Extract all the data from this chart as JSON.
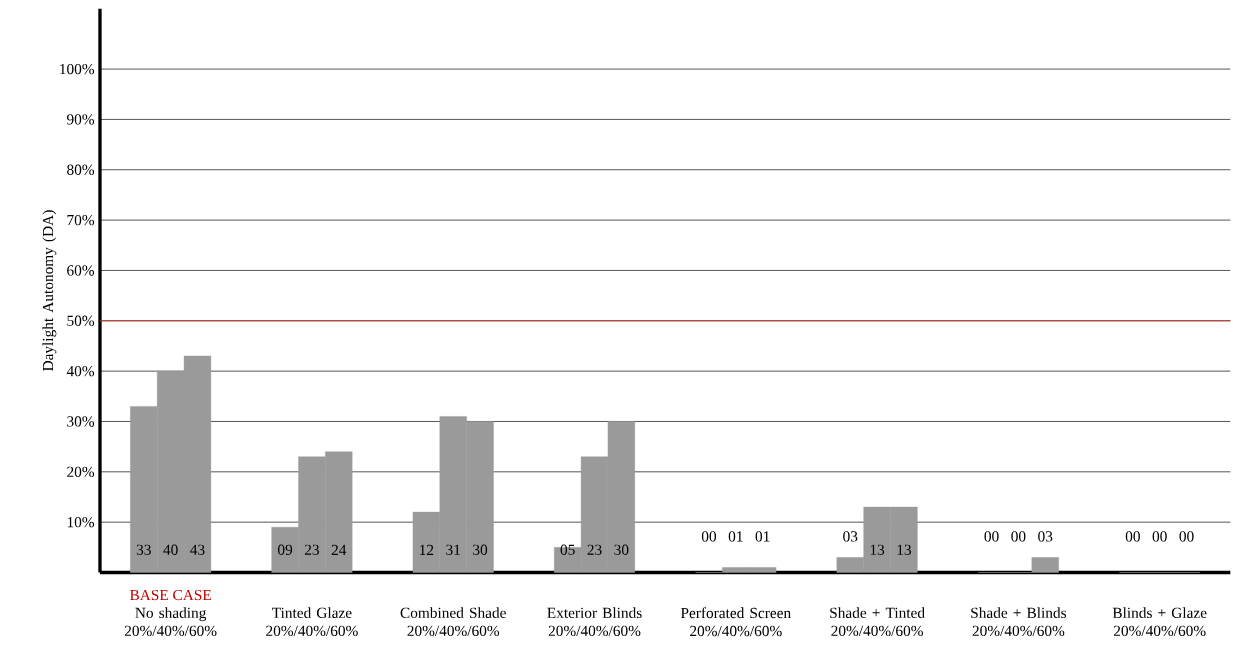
{
  "chart_data": {
    "type": "bar",
    "ylabel": "Daylight Autonomy (DA)",
    "categories": [
      "No shading 20%/40%/60%",
      "Tinted Glaze 20%/40%/60%",
      "Combined Shade 20%/40%/60%",
      "Exterior Blinds 20%/40%/60%",
      "Perforated Screen 20%/40%/60%",
      "Shade + Tinted 20%/40%/60%",
      "Shade + Blinds 20%/40%/60%",
      "Blinds + Glaze 20%/40%/60%"
    ],
    "series": [
      {
        "color": "#9a9a9a",
        "values": [
          33,
          9,
          12,
          5,
          0,
          3,
          0,
          0
        ],
        "value_labels": [
          "33",
          "09",
          "12",
          "05",
          "00",
          "03",
          "00",
          "00"
        ]
      },
      {
        "color": "#9a9a9a",
        "values": [
          40,
          23,
          31,
          23,
          1,
          13,
          0,
          0
        ],
        "value_labels": [
          "40",
          "23",
          "31",
          "23",
          "01",
          "13",
          "00",
          "00"
        ]
      },
      {
        "color": "#9a9a9a",
        "values": [
          43,
          24,
          30,
          30,
          1,
          13,
          3,
          0
        ],
        "value_labels": [
          "43",
          "24",
          "30",
          "30",
          "01",
          "13",
          "03",
          "00"
        ]
      }
    ],
    "ylim": [
      0,
      112
    ],
    "yticks": [
      {
        "value": 10,
        "label": "10%"
      },
      {
        "value": 20,
        "label": "20%"
      },
      {
        "value": 30,
        "label": "30%"
      },
      {
        "value": 40,
        "label": "40%"
      },
      {
        "value": 50,
        "label": "50%"
      },
      {
        "value": 60,
        "label": "60%"
      },
      {
        "value": 70,
        "label": "70%"
      },
      {
        "value": 80,
        "label": "80%"
      },
      {
        "value": 90,
        "label": "90%"
      },
      {
        "value": 100,
        "label": "100%"
      }
    ],
    "grid": "y",
    "ref_lines": [
      {
        "axis": "y",
        "value": 50,
        "color": "#c0392b"
      }
    ],
    "annotations": [
      "BASE CASE"
    ]
  }
}
